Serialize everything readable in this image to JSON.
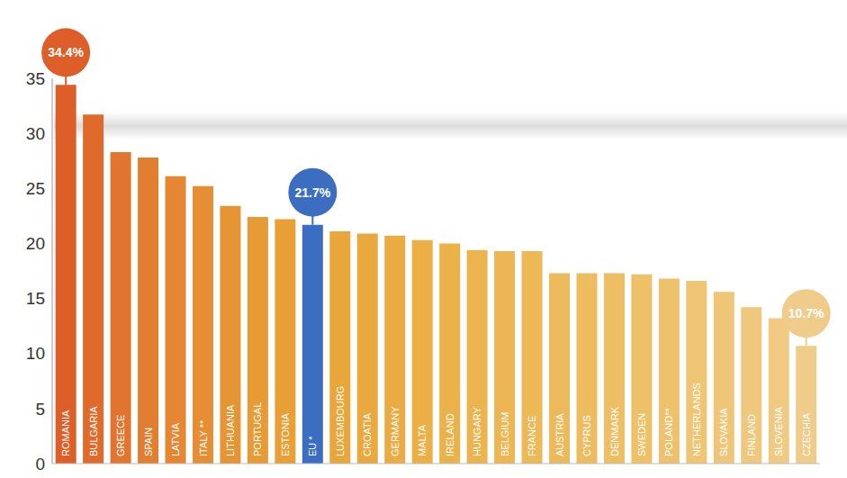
{
  "chart_data": {
    "type": "bar",
    "categories": [
      "ROMANIA",
      "BULGARIA",
      "GREECE",
      "SPAIN",
      "LATVIA",
      "ITALY **",
      "LITHUANIA",
      "PORTUGAL",
      "ESTONIA",
      "EU *",
      "LUXEMBOURG",
      "CROATIA",
      "GERMANY",
      "MALTA",
      "IRELAND",
      "HUNGARY",
      "BELGIUM",
      "FRANCE",
      "AUSTRIA",
      "CYPRUS",
      "DENMARK",
      "SWEDEN",
      "POLAND**",
      "NETHERLANDS",
      "SLOVAKIA",
      "FINLAND",
      "SLOVENIA",
      "CZECHIA"
    ],
    "values": [
      34.4,
      31.7,
      28.3,
      27.8,
      26.1,
      25.2,
      23.4,
      22.4,
      22.2,
      21.7,
      21.1,
      20.9,
      20.7,
      20.3,
      20.0,
      19.4,
      19.3,
      19.3,
      17.3,
      17.3,
      17.3,
      17.2,
      16.8,
      16.6,
      15.6,
      14.2,
      13.2,
      10.7
    ],
    "value_labels": [
      "34.4%",
      null,
      null,
      null,
      null,
      null,
      null,
      null,
      null,
      "21.7%",
      null,
      null,
      null,
      null,
      null,
      null,
      null,
      null,
      null,
      null,
      null,
      null,
      null,
      null,
      null,
      null,
      null,
      "10.7%"
    ],
    "colors": [
      "#DD5E28",
      "#DF6A2B",
      "#E1742E",
      "#E27E30",
      "#E48632",
      "#E58E33",
      "#E69534",
      "#E79B35",
      "#E8A036",
      "#3B6EC0",
      "#E9A63A",
      "#EAA93E",
      "#EAAC42",
      "#EBAF46",
      "#EBB24A",
      "#ECB44E",
      "#ECB652",
      "#EDB856",
      "#EDBA5B",
      "#EDBC60",
      "#EEBE64",
      "#EEC068",
      "#EEC26D",
      "#EFC472",
      "#EFC677",
      "#EFC87D",
      "#F0CA83",
      "#F0CC8A"
    ],
    "ylim": [
      0,
      35
    ],
    "yticks": [
      0,
      5,
      10,
      15,
      20,
      25,
      30,
      35
    ],
    "grid": false
  }
}
